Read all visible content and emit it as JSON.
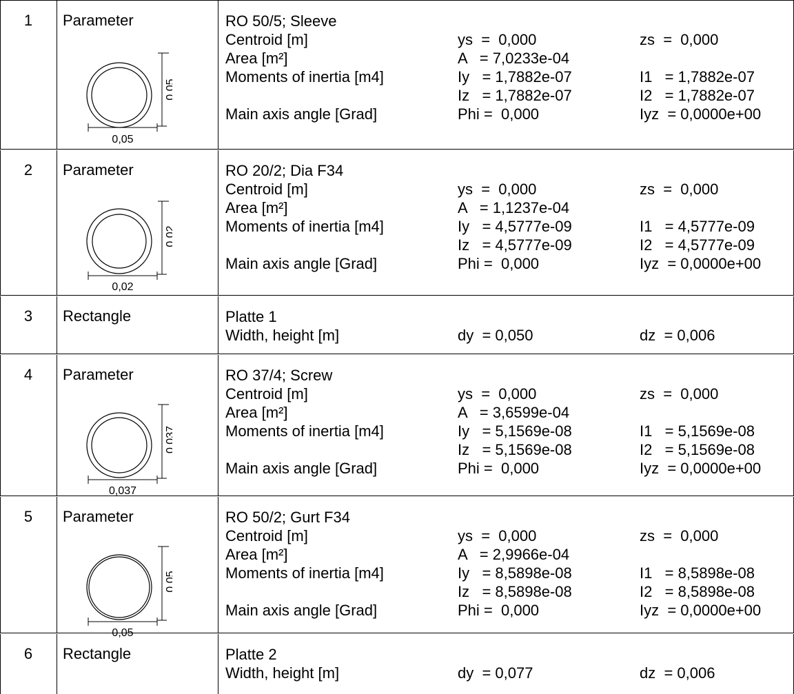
{
  "sections": [
    {
      "number": "1",
      "type": "Parameter",
      "name": "RO 50/5; Sleeve",
      "dim_label": "0,05",
      "centroid": {
        "label": "Centroid [m]",
        "ys": "ys  =  0,000",
        "zs": "zs  =  0,000"
      },
      "area": {
        "label": "Area [m²]",
        "a": "A   = 7,0233e-04"
      },
      "inertia": {
        "label": "Moments of inertia [m4]",
        "iy": "Iy   = 1,7882e-07",
        "i1": "I1   = 1,7882e-07",
        "iz": "Iz   = 1,7882e-07",
        "i2": "I2   = 1,7882e-07"
      },
      "angle": {
        "label": "Main axis angle [Grad]",
        "phi": "Phi =  0,000",
        "iyz": "Iyz  = 0,0000e+00"
      }
    },
    {
      "number": "2",
      "type": "Parameter",
      "name": "RO 20/2; Dia F34",
      "dim_label": "0,02",
      "centroid": {
        "label": "Centroid [m]",
        "ys": "ys  =  0,000",
        "zs": "zs  =  0,000"
      },
      "area": {
        "label": "Area [m²]",
        "a": "A   = 1,1237e-04"
      },
      "inertia": {
        "label": "Moments of inertia [m4]",
        "iy": "Iy   = 4,5777e-09",
        "i1": "I1   = 4,5777e-09",
        "iz": "Iz   = 4,5777e-09",
        "i2": "I2   = 4,5777e-09"
      },
      "angle": {
        "label": "Main axis angle [Grad]",
        "phi": "Phi =  0,000",
        "iyz": "Iyz  = 0,0000e+00"
      }
    },
    {
      "number": "3",
      "type": "Rectangle",
      "name": "Platte 1",
      "size": {
        "label": "Width, height [m]",
        "dy": "dy  = 0,050",
        "dz": "dz  = 0,006"
      }
    },
    {
      "number": "4",
      "type": "Parameter",
      "name": "RO 37/4; Screw",
      "dim_label": "0,037",
      "centroid": {
        "label": "Centroid [m]",
        "ys": "ys  =  0,000",
        "zs": "zs  =  0,000"
      },
      "area": {
        "label": "Area [m²]",
        "a": "A   = 3,6599e-04"
      },
      "inertia": {
        "label": "Moments of inertia [m4]",
        "iy": "Iy   = 5,1569e-08",
        "i1": "I1   = 5,1569e-08",
        "iz": "Iz   = 5,1569e-08",
        "i2": "I2   = 5,1569e-08"
      },
      "angle": {
        "label": "Main axis angle [Grad]",
        "phi": "Phi =  0,000",
        "iyz": "Iyz  = 0,0000e+00"
      }
    },
    {
      "number": "5",
      "type": "Parameter",
      "name": "RO 50/2; Gurt F34",
      "dim_label": "0,05",
      "centroid": {
        "label": "Centroid [m]",
        "ys": "ys  =  0,000",
        "zs": "zs  =  0,000"
      },
      "area": {
        "label": "Area [m²]",
        "a": "A   = 2,9966e-04"
      },
      "inertia": {
        "label": "Moments of inertia [m4]",
        "iy": "Iy   = 8,5898e-08",
        "i1": "I1   = 8,5898e-08",
        "iz": "Iz   = 8,5898e-08",
        "i2": "I2   = 8,5898e-08"
      },
      "angle": {
        "label": "Main axis angle [Grad]",
        "phi": "Phi =  0,000",
        "iyz": "Iyz  = 0,0000e+00"
      }
    },
    {
      "number": "6",
      "type": "Rectangle",
      "name": "Platte 2",
      "size": {
        "label": "Width, height [m]",
        "dy": "dy  = 0,077",
        "dz": "dz  = 0,006"
      }
    }
  ]
}
